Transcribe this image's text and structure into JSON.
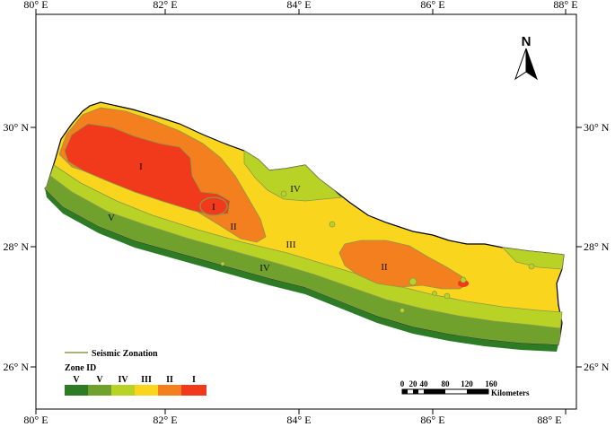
{
  "map": {
    "longitude_labels": [
      "80° E",
      "82° E",
      "84° E",
      "86° E",
      "88° E"
    ],
    "latitude_labels": [
      "30° N",
      "28° N",
      "26° N"
    ],
    "north_label": "N",
    "zone_labels": [
      "I",
      "I",
      "II",
      "II",
      "III",
      "IV",
      "IV",
      "V"
    ],
    "colors": {
      "zone_I": "#f03a1b",
      "zone_II": "#f47f1f",
      "zone_III": "#f9d51d",
      "zone_IV": "#b8d325",
      "zone_V_light": "#6fa12c",
      "zone_V_dark": "#2e7b25",
      "contour_line": "#8a9a4a"
    }
  },
  "legend": {
    "line_label": "Seismic Zonation",
    "title": "Zone ID",
    "items": [
      {
        "label": "V",
        "color": "#2e7b25"
      },
      {
        "label": "V",
        "color": "#6fa12c"
      },
      {
        "label": "IV",
        "color": "#b8d325"
      },
      {
        "label": "III",
        "color": "#f9d51d"
      },
      {
        "label": "II",
        "color": "#f47f1f"
      },
      {
        "label": "I",
        "color": "#f03a1b"
      }
    ]
  },
  "scale_bar": {
    "ticks": [
      "0",
      "20",
      "40",
      "80",
      "120",
      "160"
    ],
    "unit": "Kilometers"
  }
}
